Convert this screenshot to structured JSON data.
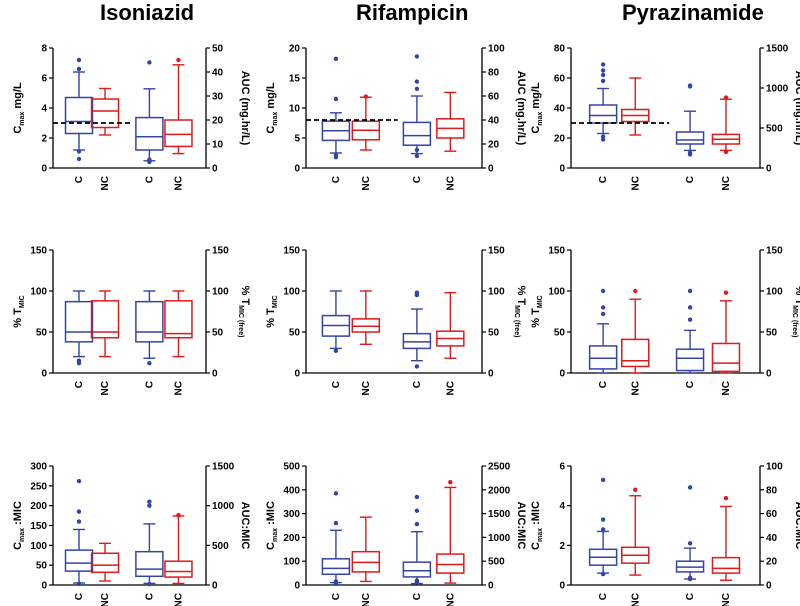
{
  "titles": [
    "Isoniazid",
    "Rifampicin",
    "Pyrazinamide"
  ],
  "colors": {
    "C": "#3344a8",
    "NC": "#e0191b",
    "axis": "#000000"
  },
  "chart_data": [
    {
      "type": "boxplot",
      "drug": "Isoniazid",
      "row": "Cmax/AUC",
      "ylabel_main": "C",
      "ylabel_sub": "max",
      "ylabel_rest": " mg/L",
      "y2label": "AUC (mg.hr/L)",
      "ylim": [
        0,
        8
      ],
      "yticks": [
        0,
        2,
        4,
        6,
        8
      ],
      "y2lim": [
        0,
        50
      ],
      "y2ticks": [
        0,
        10,
        20,
        30,
        40,
        50
      ],
      "ref_line": 3,
      "groups": [
        "C",
        "NC",
        "C",
        "NC"
      ],
      "boxes": [
        {
          "axis": "left",
          "min": 1.2,
          "q1": 2.3,
          "median": 3.1,
          "q3": 4.7,
          "max": 6.4,
          "outliers": [
            0.6,
            1.1,
            6.6,
            7.2
          ]
        },
        {
          "axis": "left",
          "min": 2.2,
          "q1": 2.7,
          "median": 3.8,
          "q3": 4.6,
          "max": 5.3,
          "outliers": []
        },
        {
          "axis": "right",
          "min": 3,
          "q1": 7.5,
          "median": 13,
          "q3": 21,
          "max": 33,
          "outliers": [
            2.5,
            3.5,
            44
          ]
        },
        {
          "axis": "right",
          "min": 6,
          "q1": 9,
          "median": 14,
          "q3": 20,
          "max": 43,
          "outliers": [
            45
          ]
        }
      ]
    },
    {
      "type": "boxplot",
      "drug": "Rifampicin",
      "row": "Cmax/AUC",
      "ylabel_main": "C",
      "ylabel_sub": "max",
      "ylabel_rest": " mg/L",
      "y2label": "AUC (mg.hr/L)",
      "ylim": [
        0,
        20
      ],
      "yticks": [
        0,
        5,
        10,
        15,
        20
      ],
      "y2lim": [
        0,
        100
      ],
      "y2ticks": [
        0,
        20,
        40,
        60,
        80,
        100
      ],
      "ref_line": 8,
      "groups": [
        "C",
        "NC",
        "C",
        "NC"
      ],
      "boxes": [
        {
          "axis": "left",
          "min": 2.5,
          "q1": 4.6,
          "median": 6.2,
          "q3": 7.8,
          "max": 9.2,
          "outliers": [
            1.8,
            2.2,
            11.5,
            18.2
          ]
        },
        {
          "axis": "left",
          "min": 3,
          "q1": 4.7,
          "median": 6.3,
          "q3": 7.8,
          "max": 11.8,
          "outliers": [
            11.9
          ]
        },
        {
          "axis": "right",
          "min": 12,
          "q1": 19,
          "median": 27,
          "q3": 38,
          "max": 60,
          "outliers": [
            10,
            15,
            66,
            72,
            93
          ]
        },
        {
          "axis": "right",
          "min": 14,
          "q1": 25,
          "median": 33,
          "q3": 41,
          "max": 63,
          "outliers": []
        }
      ]
    },
    {
      "type": "boxplot",
      "drug": "Pyrazinamide",
      "row": "Cmax/AUC",
      "ylabel_main": "C",
      "ylabel_sub": "max",
      "ylabel_rest": " mg/L",
      "y2label": "AUC (mg.hr/L)",
      "ylim": [
        0,
        80
      ],
      "yticks": [
        0,
        20,
        40,
        60,
        80
      ],
      "y2lim": [
        0,
        1500
      ],
      "y2ticks": [
        0,
        500,
        1000,
        1500
      ],
      "ref_line": 30,
      "groups": [
        "C",
        "NC",
        "C",
        "NC"
      ],
      "boxes": [
        {
          "axis": "left",
          "min": 23,
          "q1": 30,
          "median": 35,
          "q3": 42,
          "max": 53,
          "outliers": [
            19,
            21,
            58,
            62,
            65,
            69
          ]
        },
        {
          "axis": "left",
          "min": 22,
          "q1": 31,
          "median": 35,
          "q3": 39,
          "max": 60,
          "outliers": []
        },
        {
          "axis": "right",
          "min": 220,
          "q1": 300,
          "median": 350,
          "q3": 450,
          "max": 710,
          "outliers": [
            170,
            190,
            1020,
            1030
          ]
        },
        {
          "axis": "right",
          "min": 220,
          "q1": 300,
          "median": 360,
          "q3": 420,
          "max": 860,
          "outliers": [
            200,
            880
          ]
        }
      ]
    },
    {
      "type": "boxplot",
      "drug": "Isoniazid",
      "row": "%TMIC",
      "ylabel_main": "% T",
      "ylabel_sub": "MIC",
      "ylabel_rest": "",
      "y2label": "% T",
      "y2label_sub": "MIC (free)",
      "ylim": [
        0,
        150
      ],
      "yticks": [
        0,
        50,
        100,
        150
      ],
      "y2lim": [
        0,
        150
      ],
      "y2ticks": [
        0,
        50,
        100,
        150
      ],
      "groups": [
        "C",
        "NC",
        "C",
        "NC"
      ],
      "boxes": [
        {
          "axis": "left",
          "min": 20,
          "q1": 38,
          "median": 50,
          "q3": 87,
          "max": 100,
          "outliers": [
            12,
            15
          ]
        },
        {
          "axis": "left",
          "min": 20,
          "q1": 43,
          "median": 50,
          "q3": 88,
          "max": 100,
          "outliers": []
        },
        {
          "axis": "right",
          "min": 18,
          "q1": 38,
          "median": 50,
          "q3": 87,
          "max": 100,
          "outliers": [
            12
          ]
        },
        {
          "axis": "right",
          "min": 20,
          "q1": 43,
          "median": 48,
          "q3": 88,
          "max": 100,
          "outliers": []
        }
      ]
    },
    {
      "type": "boxplot",
      "drug": "Rifampicin",
      "row": "%TMIC",
      "ylabel_main": "% T",
      "ylabel_sub": "MIC",
      "ylabel_rest": "",
      "y2label": "% T",
      "y2label_sub": "MIC (free)",
      "ylim": [
        0,
        150
      ],
      "yticks": [
        0,
        50,
        100,
        150
      ],
      "y2lim": [
        0,
        150
      ],
      "y2ticks": [
        0,
        50,
        100,
        150
      ],
      "groups": [
        "C",
        "NC",
        "C",
        "NC"
      ],
      "boxes": [
        {
          "axis": "left",
          "min": 30,
          "q1": 45,
          "median": 58,
          "q3": 70,
          "max": 100,
          "outliers": [
            27
          ]
        },
        {
          "axis": "left",
          "min": 35,
          "q1": 50,
          "median": 57,
          "q3": 66,
          "max": 100,
          "outliers": []
        },
        {
          "axis": "right",
          "min": 15,
          "q1": 30,
          "median": 38,
          "q3": 48,
          "max": 78,
          "outliers": [
            8,
            95,
            98
          ]
        },
        {
          "axis": "right",
          "min": 18,
          "q1": 33,
          "median": 42,
          "q3": 51,
          "max": 98,
          "outliers": []
        }
      ]
    },
    {
      "type": "boxplot",
      "drug": "Pyrazinamide",
      "row": "%TMIC",
      "ylabel_main": "% T",
      "ylabel_sub": "MIC",
      "ylabel_rest": "",
      "y2label": "% T",
      "y2label_sub": "MIC (free)",
      "ylim": [
        0,
        150
      ],
      "yticks": [
        0,
        50,
        100,
        150
      ],
      "y2lim": [
        0,
        150
      ],
      "y2ticks": [
        0,
        50,
        100,
        150
      ],
      "groups": [
        "C",
        "NC",
        "C",
        "NC"
      ],
      "boxes": [
        {
          "axis": "left",
          "min": 0,
          "q1": 5,
          "median": 18,
          "q3": 33,
          "max": 60,
          "outliers": [
            72,
            80,
            100
          ]
        },
        {
          "axis": "left",
          "min": 0,
          "q1": 8,
          "median": 15,
          "q3": 41,
          "max": 90,
          "outliers": [
            100
          ]
        },
        {
          "axis": "right",
          "min": 0,
          "q1": 3,
          "median": 18,
          "q3": 29,
          "max": 52,
          "outliers": [
            65,
            80,
            100
          ]
        },
        {
          "axis": "right",
          "min": 0,
          "q1": 2,
          "median": 12,
          "q3": 36,
          "max": 88,
          "outliers": [
            98
          ]
        }
      ]
    },
    {
      "type": "boxplot",
      "drug": "Isoniazid",
      "row": "Cmax:MIC",
      "ylabel_main": "C",
      "ylabel_sub": "max",
      "ylabel_rest": " :MIC",
      "y2label": "AUC:MIC",
      "ylim": [
        0,
        300
      ],
      "yticks": [
        0,
        50,
        100,
        150,
        200,
        250,
        300
      ],
      "y2lim": [
        0,
        1500
      ],
      "y2ticks": [
        0,
        500,
        1000,
        1500
      ],
      "groups": [
        "C",
        "NC",
        "C",
        "NC"
      ],
      "boxes": [
        {
          "axis": "left",
          "min": 5,
          "q1": 35,
          "median": 55,
          "q3": 88,
          "max": 140,
          "outliers": [
            3,
            160,
            185,
            262
          ]
        },
        {
          "axis": "left",
          "min": 10,
          "q1": 32,
          "median": 50,
          "q3": 80,
          "max": 105,
          "outliers": []
        },
        {
          "axis": "right",
          "min": 20,
          "q1": 110,
          "median": 200,
          "q3": 420,
          "max": 770,
          "outliers": [
            10,
            1000,
            1050
          ]
        },
        {
          "axis": "right",
          "min": 20,
          "q1": 100,
          "median": 170,
          "q3": 300,
          "max": 870,
          "outliers": [
            880
          ]
        }
      ]
    },
    {
      "type": "boxplot",
      "drug": "Rifampicin",
      "row": "Cmax:MIC",
      "ylabel_main": "C",
      "ylabel_sub": "max",
      "ylabel_rest": " :MIC",
      "y2label": "AUC:MIC",
      "ylim": [
        0,
        500
      ],
      "yticks": [
        0,
        100,
        200,
        300,
        400,
        500
      ],
      "y2lim": [
        0,
        2500
      ],
      "y2ticks": [
        0,
        500,
        1000,
        1500,
        2000,
        2500
      ],
      "groups": [
        "C",
        "NC",
        "C",
        "NC"
      ],
      "boxes": [
        {
          "axis": "left",
          "min": 10,
          "q1": 45,
          "median": 70,
          "q3": 110,
          "max": 230,
          "outliers": [
            8,
            15,
            260,
            385
          ]
        },
        {
          "axis": "left",
          "min": 15,
          "q1": 55,
          "median": 95,
          "q3": 140,
          "max": 285,
          "outliers": []
        },
        {
          "axis": "right",
          "min": 30,
          "q1": 170,
          "median": 300,
          "q3": 480,
          "max": 1120,
          "outliers": [
            60,
            90,
            1280,
            1560,
            1850
          ]
        },
        {
          "axis": "right",
          "min": 40,
          "q1": 250,
          "median": 430,
          "q3": 650,
          "max": 2050,
          "outliers": [
            2160
          ]
        }
      ]
    },
    {
      "type": "boxplot",
      "drug": "Pyrazinamide",
      "row": "Cmax:MIC",
      "ylabel_main": "C",
      "ylabel_sub": "max",
      "ylabel_rest": " :MIC",
      "y2label": "AUC:MIC",
      "ylim": [
        0,
        6
      ],
      "yticks": [
        0,
        2,
        4,
        6
      ],
      "y2lim": [
        0,
        100
      ],
      "y2ticks": [
        0,
        20,
        40,
        60,
        80,
        100
      ],
      "groups": [
        "C",
        "NC",
        "C",
        "NC"
      ],
      "boxes": [
        {
          "axis": "left",
          "min": 0.6,
          "q1": 1.0,
          "median": 1.4,
          "q3": 1.8,
          "max": 2.7,
          "outliers": [
            0.55,
            2.8,
            3.3,
            5.3
          ]
        },
        {
          "axis": "left",
          "min": 0.5,
          "q1": 1.1,
          "median": 1.5,
          "q3": 1.9,
          "max": 4.5,
          "outliers": [
            4.8
          ]
        },
        {
          "axis": "right",
          "min": 5,
          "q1": 11,
          "median": 15,
          "q3": 20,
          "max": 31,
          "outliers": [
            5,
            6,
            35,
            82
          ]
        },
        {
          "axis": "right",
          "min": 4,
          "q1": 10,
          "median": 14,
          "q3": 23,
          "max": 66,
          "outliers": [
            73
          ]
        }
      ]
    }
  ]
}
